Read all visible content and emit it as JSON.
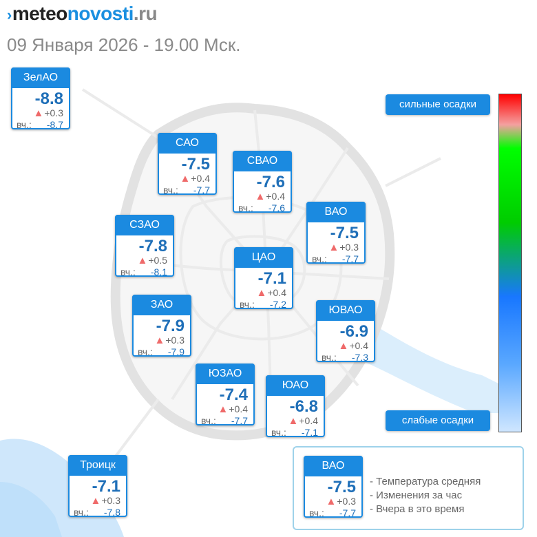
{
  "header": {
    "logo_part_a": "meteo",
    "logo_part_b": "novosti",
    "logo_part_c": ".ru",
    "datetime": "09 Января 2026 - 19.00 Мск."
  },
  "labels": {
    "yesterday_prefix": "вч.:"
  },
  "districts": [
    {
      "name": "ЗелАО",
      "temp": "-8.8",
      "change": "+0.3",
      "yesterday": "-8.7"
    },
    {
      "name": "САО",
      "temp": "-7.5",
      "change": "+0.4",
      "yesterday": "-7.7"
    },
    {
      "name": "СВАО",
      "temp": "-7.6",
      "change": "+0.4",
      "yesterday": "-7.6"
    },
    {
      "name": "ВАО",
      "temp": "-7.5",
      "change": "+0.3",
      "yesterday": "-7.7"
    },
    {
      "name": "СЗАО",
      "temp": "-7.8",
      "change": "+0.5",
      "yesterday": "-8.1"
    },
    {
      "name": "ЦАО",
      "temp": "-7.1",
      "change": "+0.4",
      "yesterday": "-7.2"
    },
    {
      "name": "ЗАО",
      "temp": "-7.9",
      "change": "+0.3",
      "yesterday": "-7.9"
    },
    {
      "name": "ЮВАО",
      "temp": "-6.9",
      "change": "+0.4",
      "yesterday": "-7.3"
    },
    {
      "name": "ЮЗАО",
      "temp": "-7.4",
      "change": "+0.4",
      "yesterday": "-7.7"
    },
    {
      "name": "ЮАО",
      "temp": "-6.8",
      "change": "+0.4",
      "yesterday": "-7.1"
    },
    {
      "name": "Троицк",
      "temp": "-7.1",
      "change": "+0.3",
      "yesterday": "-7.8"
    }
  ],
  "precip_scale": {
    "top_label": "сильные осадки",
    "bottom_label": "слабые осадки",
    "colors": [
      "#ff0000",
      "#f4a0a0",
      "#00ff00",
      "#00cc00",
      "#1877ff",
      "#5aa8ff",
      "#cfe6ff"
    ]
  },
  "legend": {
    "example": {
      "name": "ВАО",
      "temp": "-7.5",
      "change": "+0.3",
      "yesterday": "-7.7"
    },
    "line_temp": "- Температура средняя",
    "line_change": "- Изменения за час",
    "line_yesterday": "- Вчера в это время"
  },
  "colors": {
    "accent": "#1b8ae0",
    "temp_text": "#1f6fb8",
    "rise_arrow": "#ef6a6a",
    "city_outline": "#e4e4e4"
  }
}
